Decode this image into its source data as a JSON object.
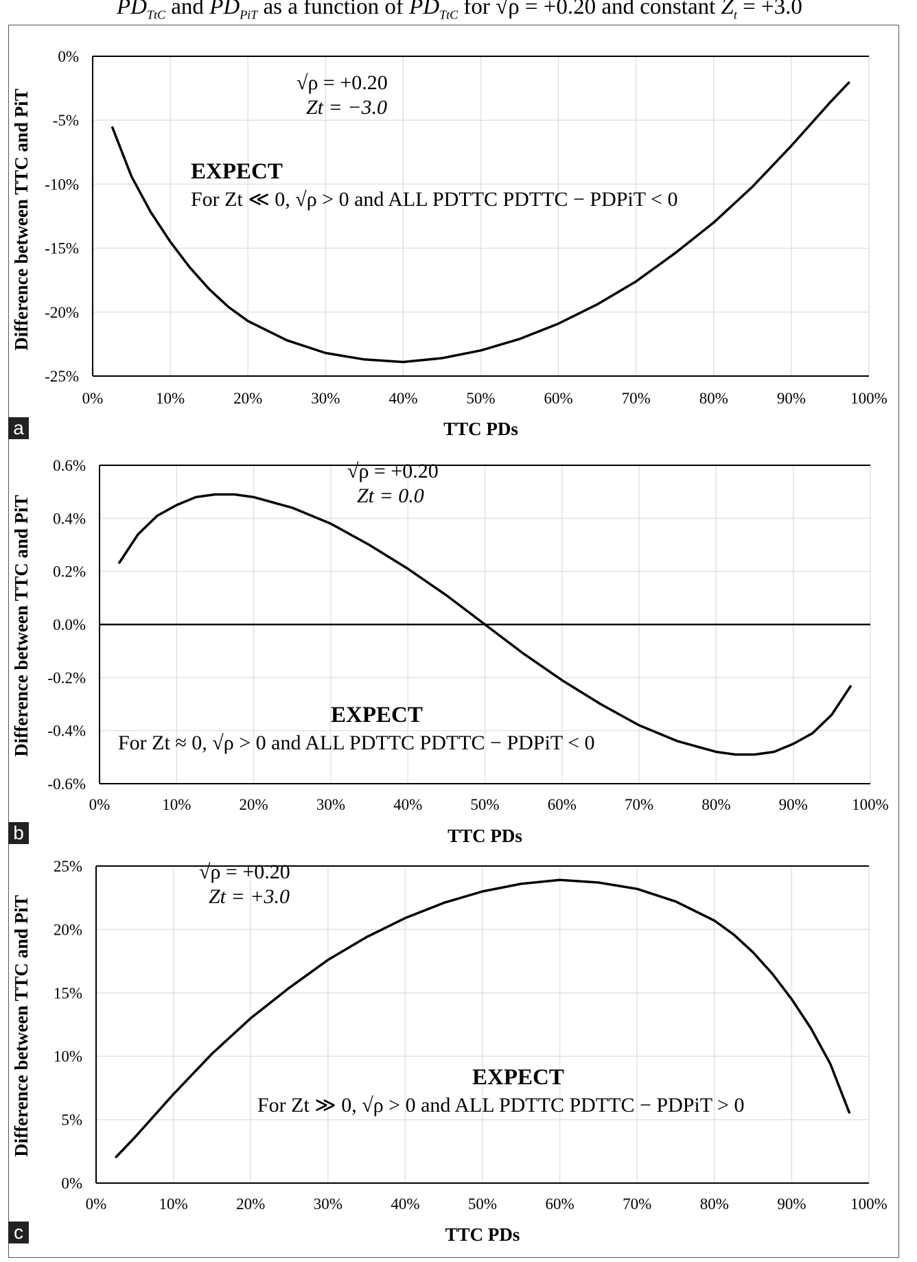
{
  "caption": {
    "pd": "PD",
    "ttc_sub": "TtC",
    "and": " and ",
    "pit_sub": "PiT",
    "as_fn": " as a function of ",
    "for": " for ",
    "sqrt_rho": "√ρ = +0.20",
    "and_const": " and constant ",
    "z": "Z",
    "z_sub": "t",
    "z_val": " = +3.0"
  },
  "chart_data": [
    {
      "panel_label": "a",
      "type": "line",
      "xlabel": "TTC PDs",
      "ylabel": "Difference between TTC and PiT",
      "xlim": [
        0,
        1
      ],
      "ylim": [
        -0.25,
        0
      ],
      "x_ticks": [
        "0%",
        "10%",
        "20%",
        "30%",
        "40%",
        "50%",
        "60%",
        "70%",
        "80%",
        "90%",
        "100%"
      ],
      "y_ticks": [
        {
          "value": 0,
          "label": "0%"
        },
        {
          "value": -0.05,
          "label": "-5%"
        },
        {
          "value": -0.1,
          "label": "-10%"
        },
        {
          "value": -0.15,
          "label": "-15%"
        },
        {
          "value": -0.2,
          "label": "-20%"
        },
        {
          "value": -0.25,
          "label": "-25%"
        }
      ],
      "zero_line": false,
      "params": {
        "line1": "√ρ = +0.20",
        "line2": "Zt = −3.0"
      },
      "expect": {
        "title": "EXPECT",
        "text": "For Zt ≪ 0, √ρ > 0 and ALL PDTTC   PDTTC − PDPiT < 0"
      },
      "x": [
        0.025,
        0.05,
        0.075,
        0.1,
        0.125,
        0.15,
        0.175,
        0.2,
        0.25,
        0.3,
        0.35,
        0.4,
        0.45,
        0.5,
        0.55,
        0.6,
        0.65,
        0.7,
        0.75,
        0.8,
        0.85,
        0.9,
        0.95,
        0.975
      ],
      "y": [
        -0.055,
        -0.094,
        -0.122,
        -0.145,
        -0.165,
        -0.182,
        -0.196,
        -0.207,
        -0.222,
        -0.232,
        -0.237,
        -0.239,
        -0.236,
        -0.23,
        -0.221,
        -0.209,
        -0.194,
        -0.176,
        -0.154,
        -0.13,
        -0.102,
        -0.07,
        -0.036,
        -0.02
      ]
    },
    {
      "panel_label": "b",
      "type": "line",
      "xlabel": "TTC PDs",
      "ylabel": "Difference between TTC and PiT",
      "xlim": [
        0,
        1
      ],
      "ylim": [
        -0.006,
        0.006
      ],
      "x_ticks": [
        "0%",
        "10%",
        "20%",
        "30%",
        "40%",
        "50%",
        "60%",
        "70%",
        "80%",
        "90%",
        "100%"
      ],
      "y_ticks": [
        {
          "value": 0.006,
          "label": "0.6%"
        },
        {
          "value": 0.004,
          "label": "0.4%"
        },
        {
          "value": 0.002,
          "label": "0.2%"
        },
        {
          "value": 0,
          "label": "0.0%"
        },
        {
          "value": -0.002,
          "label": "-0.2%"
        },
        {
          "value": -0.004,
          "label": "-0.4%"
        },
        {
          "value": -0.006,
          "label": "-0.6%"
        }
      ],
      "zero_line": true,
      "params": {
        "line1": "√ρ = +0.20",
        "line2": "Zt = 0.0"
      },
      "expect": {
        "title": "EXPECT",
        "text": "For Zt ≈ 0, √ρ > 0 and ALL PDTTC   PDTTC − PDPiT < 0"
      },
      "x": [
        0.025,
        0.05,
        0.075,
        0.1,
        0.125,
        0.15,
        0.175,
        0.2,
        0.25,
        0.3,
        0.35,
        0.4,
        0.45,
        0.5,
        0.55,
        0.6,
        0.65,
        0.7,
        0.75,
        0.8,
        0.825,
        0.85,
        0.875,
        0.9,
        0.925,
        0.95,
        0.975
      ],
      "y": [
        0.0023,
        0.0034,
        0.0041,
        0.0045,
        0.0048,
        0.0049,
        0.0049,
        0.0048,
        0.0044,
        0.0038,
        0.003,
        0.0021,
        0.0011,
        0.0,
        -0.0011,
        -0.0021,
        -0.003,
        -0.0038,
        -0.0044,
        -0.0048,
        -0.0049,
        -0.0049,
        -0.0048,
        -0.0045,
        -0.0041,
        -0.0034,
        -0.0023
      ]
    },
    {
      "panel_label": "c",
      "type": "line",
      "xlabel": "TTC PDs",
      "ylabel": "Difference between TTC and PiT",
      "xlim": [
        0,
        1
      ],
      "ylim": [
        0,
        0.25
      ],
      "x_ticks": [
        "0%",
        "10%",
        "20%",
        "30%",
        "40%",
        "50%",
        "60%",
        "70%",
        "80%",
        "90%",
        "100%"
      ],
      "y_ticks": [
        {
          "value": 0.25,
          "label": "25%"
        },
        {
          "value": 0.2,
          "label": "20%"
        },
        {
          "value": 0.15,
          "label": "15%"
        },
        {
          "value": 0.1,
          "label": "10%"
        },
        {
          "value": 0.05,
          "label": "5%"
        },
        {
          "value": 0,
          "label": "0%"
        }
      ],
      "zero_line": false,
      "params": {
        "line1": "√ρ = +0.20",
        "line2": "Zt = +3.0"
      },
      "expect": {
        "title": "EXPECT",
        "text": "For Zt ≫ 0, √ρ > 0 and ALL PDTTC   PDTTC − PDPiT > 0"
      },
      "x": [
        0.025,
        0.05,
        0.1,
        0.15,
        0.2,
        0.25,
        0.3,
        0.35,
        0.4,
        0.45,
        0.5,
        0.55,
        0.6,
        0.65,
        0.7,
        0.75,
        0.8,
        0.825,
        0.85,
        0.875,
        0.9,
        0.925,
        0.95,
        0.975
      ],
      "y": [
        0.02,
        0.036,
        0.07,
        0.102,
        0.13,
        0.154,
        0.176,
        0.194,
        0.209,
        0.221,
        0.23,
        0.236,
        0.239,
        0.237,
        0.232,
        0.222,
        0.207,
        0.196,
        0.182,
        0.165,
        0.145,
        0.122,
        0.094,
        0.055
      ]
    }
  ]
}
